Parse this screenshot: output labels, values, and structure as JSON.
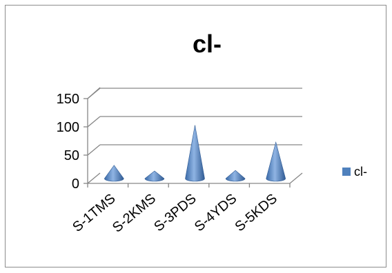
{
  "chart_data": {
    "type": "bar",
    "bar_shape": "cone-3d",
    "title": "cl-",
    "categories": [
      "S-1TMS",
      "S-2KMS",
      "S-3PDS",
      "S-4YDS",
      "S-5KDS"
    ],
    "series": [
      {
        "name": "cl-",
        "values": [
          32,
          22,
          103,
          23,
          73
        ],
        "color": "#4F81BD"
      }
    ],
    "ylim": [
      0,
      150
    ],
    "yticks": [
      0,
      50,
      100,
      150
    ],
    "grid": true,
    "legend": "right"
  }
}
